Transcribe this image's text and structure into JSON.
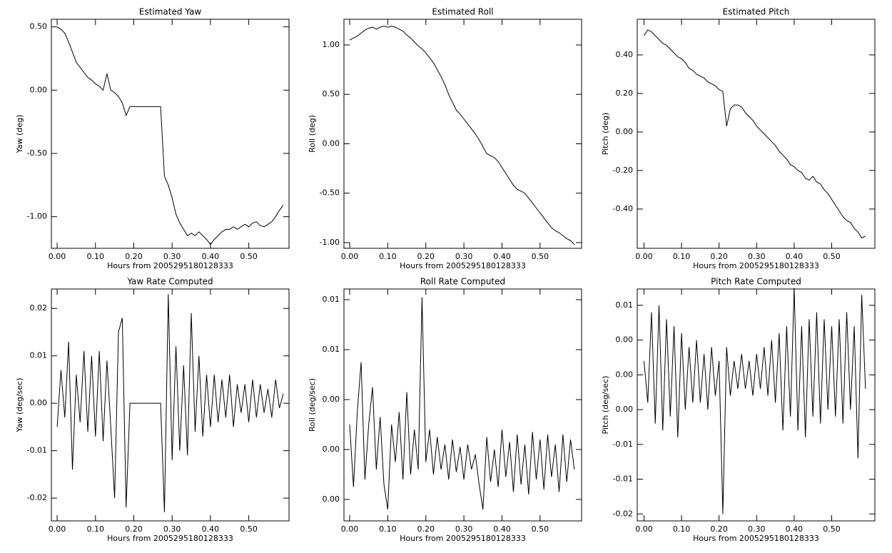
{
  "chart_data": [
    {
      "type": "line",
      "title": "Estimated Yaw",
      "x_label": "Hours from 2005295180128333",
      "y_label": "Yaw (deg)",
      "color": "#000000",
      "x": [
        0,
        0.01,
        0.02,
        0.03,
        0.04,
        0.05,
        0.06,
        0.07,
        0.08,
        0.09,
        0.1,
        0.11,
        0.12,
        0.13,
        0.14,
        0.15,
        0.16,
        0.17,
        0.18,
        0.19,
        0.2,
        0.21,
        0.22,
        0.23,
        0.24,
        0.25,
        0.26,
        0.27,
        0.28,
        0.29,
        0.3,
        0.31,
        0.32,
        0.33,
        0.34,
        0.35,
        0.36,
        0.37,
        0.38,
        0.39,
        0.4,
        0.41,
        0.42,
        0.43,
        0.44,
        0.45,
        0.46,
        0.47,
        0.48,
        0.49,
        0.5,
        0.51,
        0.52,
        0.53,
        0.54,
        0.55,
        0.56,
        0.57,
        0.58,
        0.59
      ],
      "values": [
        0.5,
        0.48,
        0.45,
        0.38,
        0.3,
        0.22,
        0.18,
        0.14,
        0.1,
        0.08,
        0.05,
        0.03,
        0.0,
        0.13,
        0.0,
        -0.02,
        -0.05,
        -0.1,
        -0.2,
        -0.13,
        -0.13,
        -0.13,
        -0.13,
        -0.13,
        -0.13,
        -0.13,
        -0.13,
        -0.13,
        -0.68,
        -0.75,
        -0.85,
        -0.98,
        -1.05,
        -1.1,
        -1.15,
        -1.13,
        -1.15,
        -1.12,
        -1.15,
        -1.18,
        -1.22,
        -1.18,
        -1.15,
        -1.12,
        -1.1,
        -1.1,
        -1.08,
        -1.1,
        -1.08,
        -1.06,
        -1.08,
        -1.05,
        -1.04,
        -1.07,
        -1.08,
        -1.06,
        -1.04,
        -1.0,
        -0.95,
        -0.91
      ],
      "xlim": [
        -0.015,
        0.605
      ],
      "xticks": [
        {
          "value": 0,
          "label": "0.00"
        },
        {
          "value": 0.1,
          "label": "0.10"
        },
        {
          "value": 0.2,
          "label": "0.20"
        },
        {
          "value": 0.3,
          "label": "0.30"
        },
        {
          "value": 0.4,
          "label": "0.40"
        },
        {
          "value": 0.5,
          "label": "0.50"
        }
      ],
      "ylim": [
        -1.25,
        0.56
      ],
      "yticks": [
        {
          "value": 0.5,
          "label": "0.50"
        },
        {
          "value": 0,
          "label": "0.00"
        },
        {
          "value": -0.5,
          "label": "-0.50"
        },
        {
          "value": -1,
          "label": "-1.00"
        }
      ]
    },
    {
      "type": "line",
      "title": "Estimated Roll",
      "x_label": "Hours from 2005295180128333",
      "y_label": "Roll (deg)",
      "color": "#000000",
      "x": [
        0,
        0.01,
        0.02,
        0.03,
        0.04,
        0.05,
        0.06,
        0.07,
        0.08,
        0.09,
        0.1,
        0.11,
        0.12,
        0.13,
        0.14,
        0.15,
        0.16,
        0.17,
        0.18,
        0.19,
        0.2,
        0.21,
        0.22,
        0.23,
        0.24,
        0.25,
        0.26,
        0.27,
        0.28,
        0.29,
        0.3,
        0.31,
        0.32,
        0.33,
        0.34,
        0.35,
        0.36,
        0.37,
        0.38,
        0.39,
        0.4,
        0.41,
        0.42,
        0.43,
        0.44,
        0.45,
        0.46,
        0.47,
        0.48,
        0.49,
        0.5,
        0.51,
        0.52,
        0.53,
        0.54,
        0.55,
        0.56,
        0.57,
        0.58,
        0.59
      ],
      "values": [
        1.05,
        1.07,
        1.09,
        1.12,
        1.15,
        1.17,
        1.18,
        1.16,
        1.18,
        1.19,
        1.18,
        1.19,
        1.18,
        1.16,
        1.14,
        1.1,
        1.07,
        1.03,
        0.99,
        0.96,
        0.92,
        0.87,
        0.82,
        0.75,
        0.68,
        0.6,
        0.5,
        0.42,
        0.34,
        0.3,
        0.25,
        0.2,
        0.15,
        0.1,
        0.04,
        -0.03,
        -0.1,
        -0.12,
        -0.14,
        -0.18,
        -0.24,
        -0.3,
        -0.36,
        -0.42,
        -0.46,
        -0.48,
        -0.5,
        -0.55,
        -0.6,
        -0.65,
        -0.7,
        -0.75,
        -0.8,
        -0.85,
        -0.88,
        -0.9,
        -0.93,
        -0.96,
        -0.98,
        -1.02
      ],
      "xlim": [
        -0.015,
        0.609
      ],
      "xticks": [
        {
          "value": 0,
          "label": "0.00"
        },
        {
          "value": 0.1,
          "label": "0.10"
        },
        {
          "value": 0.2,
          "label": "0.20"
        },
        {
          "value": 0.3,
          "label": "0.30"
        },
        {
          "value": 0.4,
          "label": "0.40"
        },
        {
          "value": 0.5,
          "label": "0.50"
        }
      ],
      "ylim": [
        -1.058,
        1.26
      ],
      "yticks": [
        {
          "value": 1,
          "label": "1.00"
        },
        {
          "value": 0.5,
          "label": "0.50"
        },
        {
          "value": 0,
          "label": "0.00"
        },
        {
          "value": -0.5,
          "label": "-0.50"
        },
        {
          "value": -1,
          "label": "-1.00"
        }
      ]
    },
    {
      "type": "line",
      "title": "Estimated Pitch",
      "x_label": "Hours from 2005295180128333",
      "y_label": "Pitch (deg)",
      "color": "#000000",
      "x": [
        0,
        0.01,
        0.02,
        0.03,
        0.04,
        0.05,
        0.06,
        0.07,
        0.08,
        0.09,
        0.1,
        0.11,
        0.12,
        0.13,
        0.14,
        0.15,
        0.16,
        0.17,
        0.18,
        0.19,
        0.2,
        0.21,
        0.22,
        0.23,
        0.24,
        0.25,
        0.26,
        0.27,
        0.28,
        0.29,
        0.3,
        0.31,
        0.32,
        0.33,
        0.34,
        0.35,
        0.36,
        0.37,
        0.38,
        0.39,
        0.4,
        0.41,
        0.42,
        0.43,
        0.44,
        0.45,
        0.46,
        0.47,
        0.48,
        0.49,
        0.5,
        0.51,
        0.52,
        0.53,
        0.54,
        0.55,
        0.56,
        0.57,
        0.58,
        0.59
      ],
      "values": [
        0.5,
        0.53,
        0.52,
        0.5,
        0.48,
        0.46,
        0.45,
        0.43,
        0.41,
        0.39,
        0.38,
        0.36,
        0.33,
        0.32,
        0.3,
        0.29,
        0.28,
        0.26,
        0.25,
        0.24,
        0.22,
        0.21,
        0.03,
        0.12,
        0.14,
        0.14,
        0.13,
        0.1,
        0.08,
        0.06,
        0.03,
        0.01,
        -0.01,
        -0.03,
        -0.05,
        -0.07,
        -0.1,
        -0.12,
        -0.14,
        -0.17,
        -0.18,
        -0.2,
        -0.21,
        -0.24,
        -0.25,
        -0.23,
        -0.26,
        -0.27,
        -0.3,
        -0.32,
        -0.35,
        -0.38,
        -0.41,
        -0.44,
        -0.46,
        -0.47,
        -0.5,
        -0.52,
        -0.55,
        -0.54
      ],
      "xlim": [
        -0.018,
        0.615
      ],
      "xticks": [
        {
          "value": 0,
          "label": "0.00"
        },
        {
          "value": 0.1,
          "label": "0.10"
        },
        {
          "value": 0.2,
          "label": "0.20"
        },
        {
          "value": 0.3,
          "label": "0.30"
        },
        {
          "value": 0.4,
          "label": "0.40"
        },
        {
          "value": 0.5,
          "label": "0.50"
        }
      ],
      "ylim": [
        -0.604,
        0.585
      ],
      "yticks": [
        {
          "value": 0.4,
          "label": "0.40"
        },
        {
          "value": 0.2,
          "label": "0.20"
        },
        {
          "value": 0,
          "label": "0.00"
        },
        {
          "value": -0.2,
          "label": "-0.20"
        },
        {
          "value": -0.4,
          "label": "-0.40"
        }
      ]
    },
    {
      "type": "line",
      "title": "Yaw Rate Computed",
      "x_label": "Hours from 2005295180128333",
      "y_label": "Yaw (deg/sec)",
      "color": "#000000",
      "x": [
        0,
        0.01,
        0.02,
        0.03,
        0.04,
        0.05,
        0.06,
        0.07,
        0.08,
        0.09,
        0.1,
        0.11,
        0.12,
        0.13,
        0.14,
        0.15,
        0.16,
        0.17,
        0.18,
        0.19,
        0.2,
        0.21,
        0.22,
        0.23,
        0.24,
        0.25,
        0.26,
        0.27,
        0.28,
        0.29,
        0.3,
        0.31,
        0.32,
        0.33,
        0.34,
        0.35,
        0.36,
        0.37,
        0.38,
        0.39,
        0.4,
        0.41,
        0.42,
        0.43,
        0.44,
        0.45,
        0.46,
        0.47,
        0.48,
        0.49,
        0.5,
        0.51,
        0.52,
        0.53,
        0.54,
        0.55,
        0.56,
        0.57,
        0.58,
        0.59
      ],
      "values": [
        -0.005,
        0.007,
        -0.003,
        0.013,
        -0.014,
        0.006,
        -0.004,
        0.011,
        -0.006,
        0.01,
        -0.007,
        0.011,
        -0.008,
        0.009,
        -0.005,
        -0.02,
        0.015,
        0.018,
        -0.022,
        0,
        0,
        0,
        0,
        0,
        0,
        0,
        0,
        0,
        -0.023,
        0.023,
        -0.012,
        0.012,
        -0.01,
        0.008,
        -0.011,
        0.019,
        -0.006,
        0.01,
        -0.007,
        0.006,
        -0.005,
        0.006,
        -0.004,
        0.005,
        -0.003,
        0.006,
        -0.005,
        0.004,
        -0.002,
        0.004,
        -0.004,
        0.005,
        -0.003,
        0.004,
        -0.002,
        0.003,
        -0.003,
        0.005,
        -0.001,
        0.002
      ],
      "xlim": [
        -0.015,
        0.605
      ],
      "xticks": [
        {
          "value": 0,
          "label": "0.00"
        },
        {
          "value": 0.1,
          "label": "0.10"
        },
        {
          "value": 0.2,
          "label": "0.20"
        },
        {
          "value": 0.3,
          "label": "0.30"
        },
        {
          "value": 0.4,
          "label": "0.40"
        },
        {
          "value": 0.5,
          "label": "0.50"
        }
      ],
      "ylim": [
        -0.0248,
        0.0241
      ],
      "yticks": [
        {
          "value": 0.02,
          "label": "0.02"
        },
        {
          "value": 0.01,
          "label": "0.01"
        },
        {
          "value": 0,
          "label": "0.00"
        },
        {
          "value": -0.01,
          "label": "-0.01"
        },
        {
          "value": -0.02,
          "label": "-0.02"
        }
      ]
    },
    {
      "type": "line",
      "title": "Roll Rate Computed",
      "x_label": "Hours from 2005295180128333",
      "y_label": "Roll (deg/sec)",
      "color": "#000000",
      "x": [
        0,
        0.01,
        0.02,
        0.03,
        0.04,
        0.05,
        0.06,
        0.07,
        0.08,
        0.09,
        0.1,
        0.11,
        0.12,
        0.13,
        0.14,
        0.15,
        0.16,
        0.17,
        0.18,
        0.19,
        0.2,
        0.21,
        0.22,
        0.23,
        0.24,
        0.25,
        0.26,
        0.27,
        0.28,
        0.29,
        0.3,
        0.31,
        0.32,
        0.33,
        0.34,
        0.35,
        0.36,
        0.37,
        0.38,
        0.39,
        0.4,
        0.41,
        0.42,
        0.43,
        0.44,
        0.45,
        0.46,
        0.47,
        0.48,
        0.49,
        0.5,
        0.51,
        0.52,
        0.53,
        0.54,
        0.55,
        0.56,
        0.57,
        0.58,
        0.59
      ],
      "values": [
        0.003,
        0.0005,
        0.0035,
        0.0055,
        0.0008,
        0.003,
        0.0045,
        0.0012,
        0.0033,
        0.0006,
        -0.0004,
        0.003,
        0.0015,
        0.0035,
        0.0008,
        0.0043,
        0.001,
        0.0028,
        0.0012,
        0.0081,
        0.0015,
        0.0028,
        0.001,
        0.0025,
        0.0012,
        0.0022,
        0.0008,
        0.0024,
        0.0011,
        0.0021,
        0.0008,
        0.0022,
        0.0012,
        0.0018,
        0.0006,
        -0.0004,
        0.0025,
        0.0007,
        0.002,
        0.0005,
        0.0028,
        0.0009,
        0.0023,
        0.0003,
        0.0026,
        0.0006,
        0.0022,
        0.0002,
        0.0027,
        0.0008,
        0.0024,
        0.0004,
        0.0026,
        0.0009,
        0.0022,
        0.0003,
        0.0026,
        0.0007,
        0.0024,
        0.0012
      ],
      "xlim": [
        -0.015,
        0.609
      ],
      "xticks": [
        {
          "value": 0,
          "label": "0.00"
        },
        {
          "value": 0.1,
          "label": "0.10"
        },
        {
          "value": 0.2,
          "label": "0.20"
        },
        {
          "value": 0.3,
          "label": "0.30"
        },
        {
          "value": 0.4,
          "label": "0.40"
        },
        {
          "value": 0.5,
          "label": "0.50"
        }
      ],
      "ylim": [
        -0.00086,
        0.00843
      ],
      "yticks": [
        {
          "value": 0.008,
          "label": "0.01"
        },
        {
          "value": 0.006,
          "label": "0.01"
        },
        {
          "value": 0.004,
          "label": "0.00"
        },
        {
          "value": 0.002,
          "label": "0.00"
        },
        {
          "value": 0,
          "label": "0.00"
        }
      ]
    },
    {
      "type": "line",
      "title": "Pitch Rate Computed",
      "x_label": "Hours from 2005295180128333",
      "y_label": "Pitch (deg/sec)",
      "color": "#000000",
      "x": [
        0,
        0.01,
        0.02,
        0.03,
        0.04,
        0.05,
        0.06,
        0.07,
        0.08,
        0.09,
        0.1,
        0.11,
        0.12,
        0.13,
        0.14,
        0.15,
        0.16,
        0.17,
        0.18,
        0.19,
        0.2,
        0.21,
        0.22,
        0.23,
        0.24,
        0.25,
        0.26,
        0.27,
        0.28,
        0.29,
        0.3,
        0.31,
        0.32,
        0.33,
        0.34,
        0.35,
        0.36,
        0.37,
        0.38,
        0.39,
        0.4,
        0.41,
        0.42,
        0.43,
        0.44,
        0.45,
        0.46,
        0.47,
        0.48,
        0.49,
        0.5,
        0.51,
        0.52,
        0.53,
        0.54,
        0.55,
        0.56,
        0.57,
        0.58,
        0.59
      ],
      "values": [
        0.002,
        -0.004,
        0.009,
        -0.007,
        0.01,
        -0.008,
        0.008,
        -0.006,
        0.007,
        -0.009,
        0.006,
        -0.005,
        0.004,
        -0.004,
        0.005,
        -0.004,
        0.003,
        -0.005,
        0.004,
        -0.003,
        0.002,
        -0.02,
        0.004,
        -0.003,
        0.002,
        -0.002,
        0.003,
        -0.002,
        0.002,
        -0.003,
        0.003,
        -0.002,
        0.004,
        -0.003,
        0.005,
        -0.004,
        0.006,
        -0.008,
        0.007,
        -0.006,
        0.0125,
        -0.008,
        0.007,
        -0.009,
        0.008,
        -0.006,
        0.009,
        -0.007,
        0.008,
        -0.005,
        0.007,
        -0.006,
        0.008,
        -0.007,
        0.009,
        -0.005,
        0.007,
        -0.012,
        0.0115,
        -0.002
      ],
      "xlim": [
        -0.018,
        0.615
      ],
      "xticks": [
        {
          "value": 0,
          "label": "0.00"
        },
        {
          "value": 0.1,
          "label": "0.10"
        },
        {
          "value": 0.2,
          "label": "0.20"
        },
        {
          "value": 0.3,
          "label": "0.30"
        },
        {
          "value": 0.4,
          "label": "0.40"
        },
        {
          "value": 0.5,
          "label": "0.50"
        }
      ],
      "ylim": [
        -0.021,
        0.01235
      ],
      "yticks": [
        {
          "value": 0.01,
          "label": "0.01"
        },
        {
          "value": 0.005,
          "label": "0.00"
        },
        {
          "value": 0,
          "label": "0.00"
        },
        {
          "value": -0.005,
          "label": "0.00"
        },
        {
          "value": -0.01,
          "label": "-0.01"
        },
        {
          "value": -0.015,
          "label": "-0.01"
        },
        {
          "value": -0.02,
          "label": "-0.02"
        }
      ]
    }
  ]
}
